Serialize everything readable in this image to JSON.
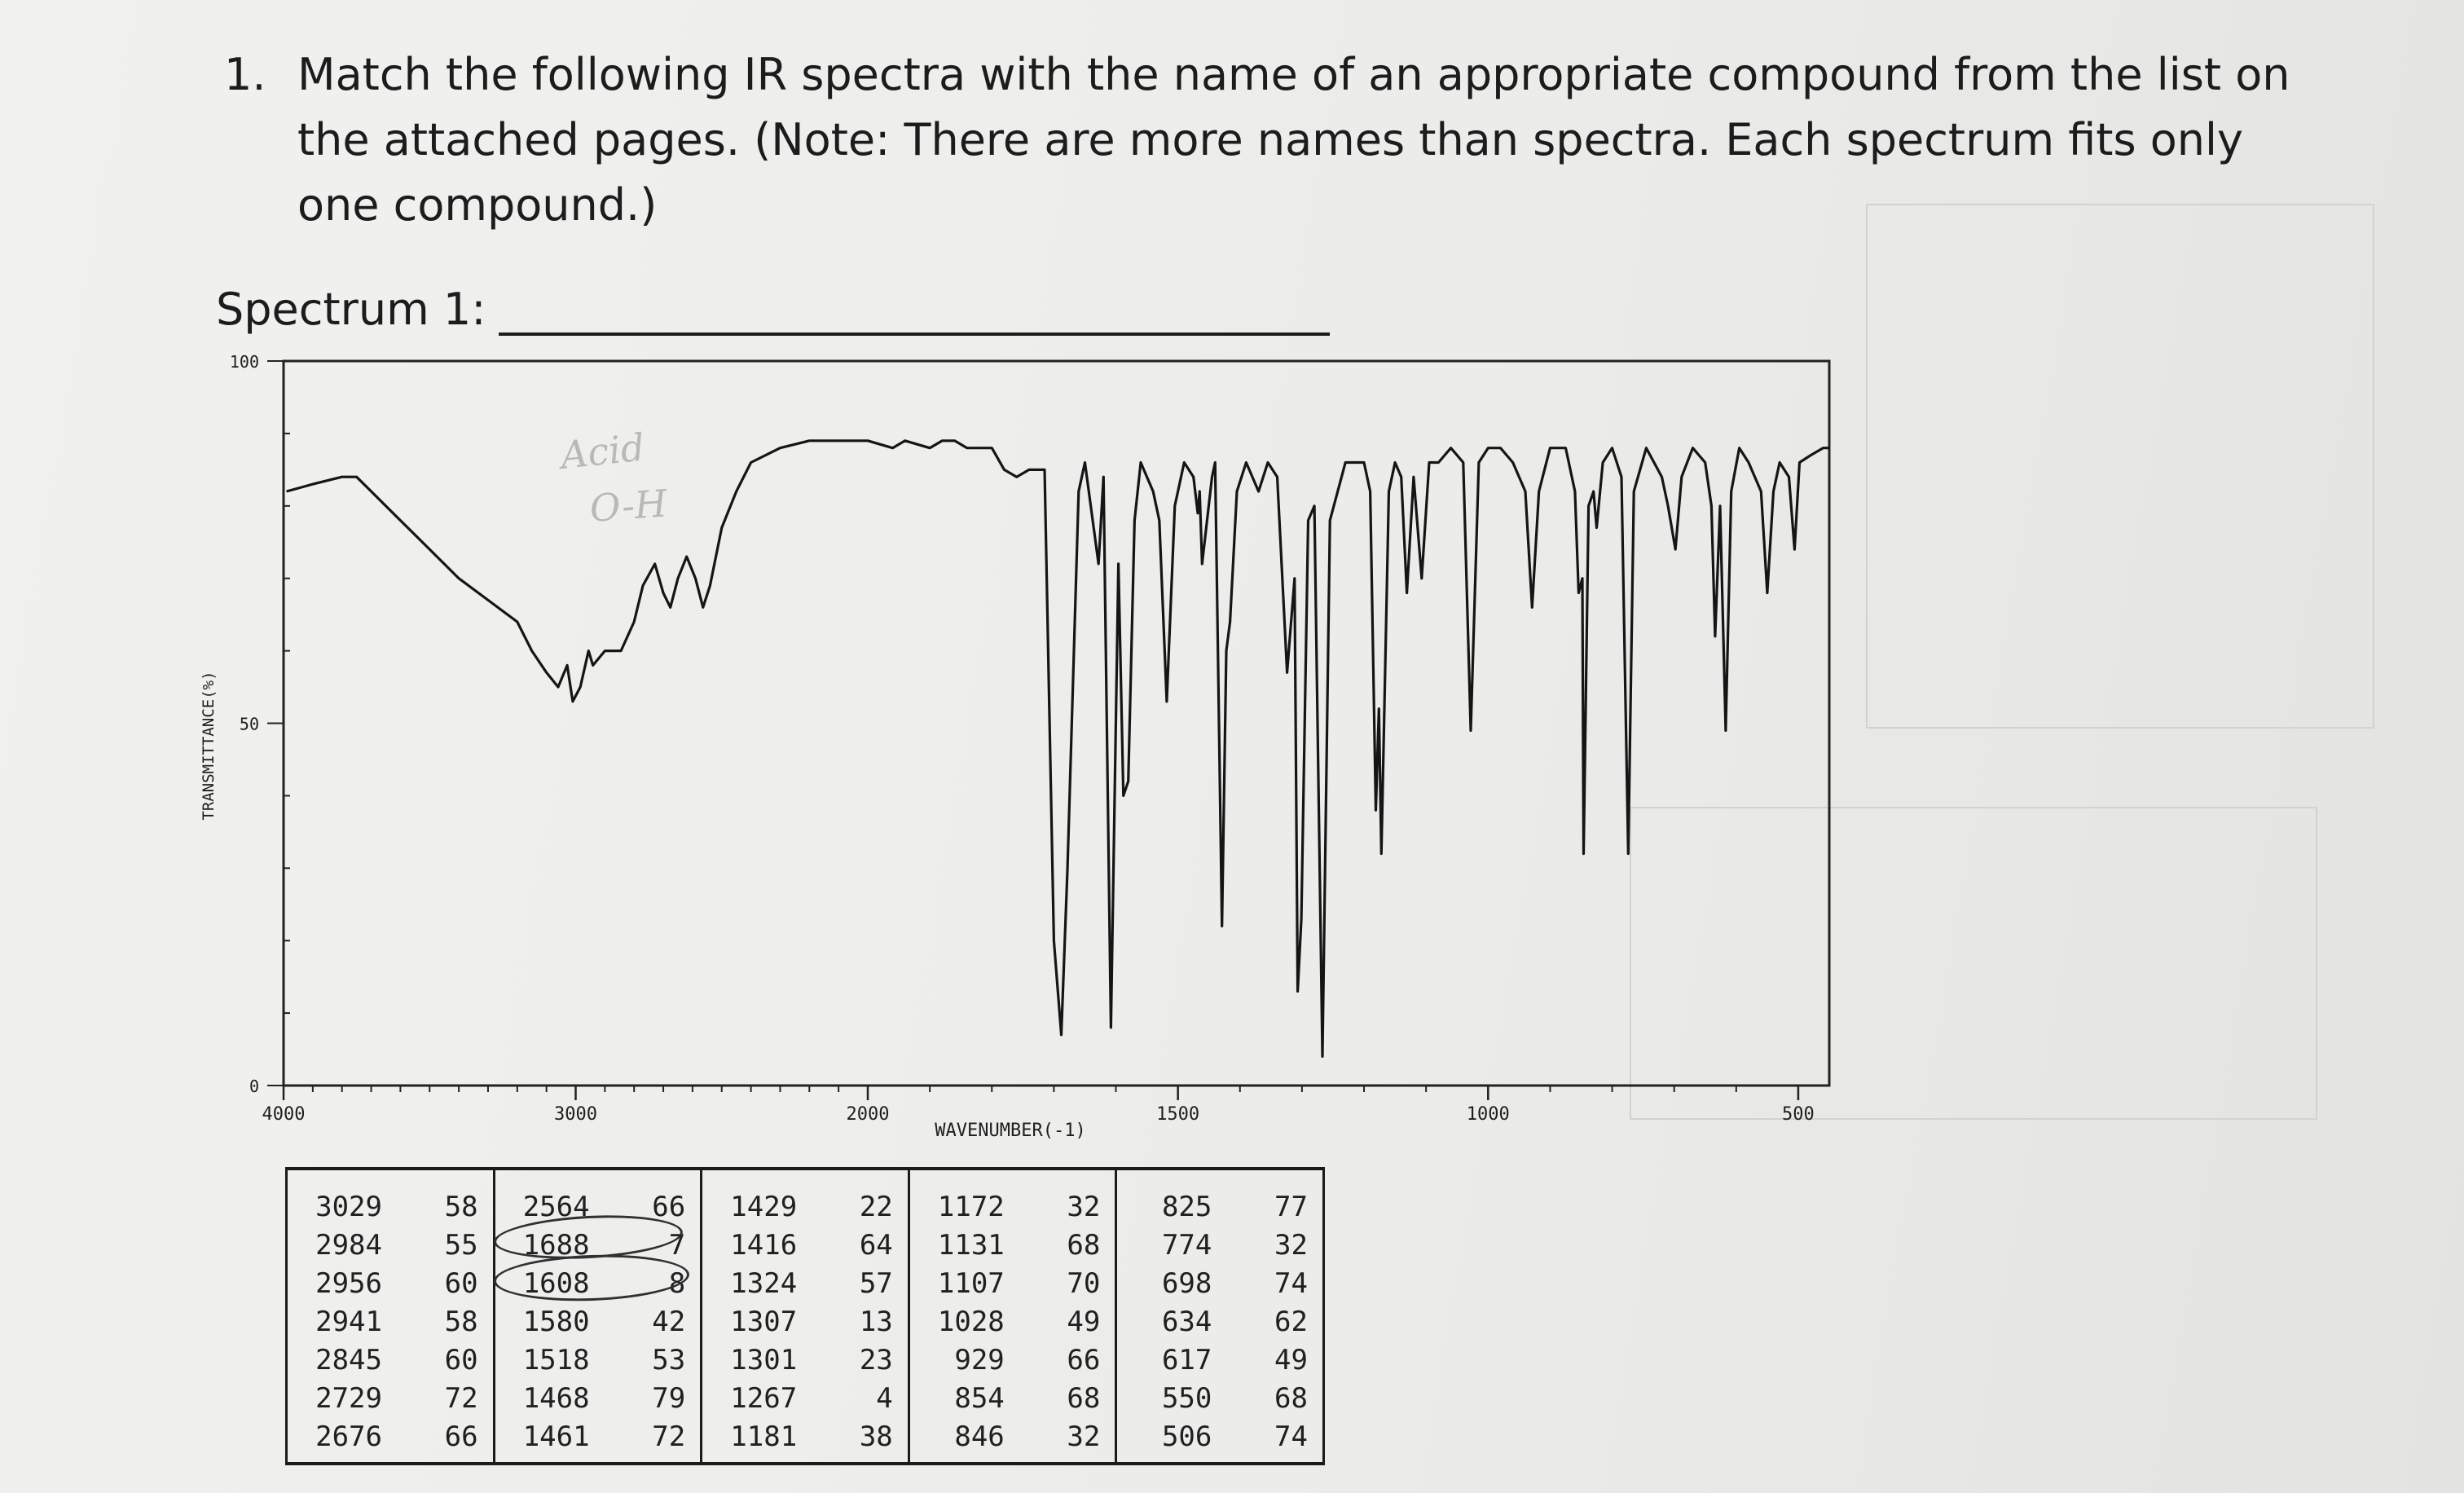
{
  "question": {
    "number": "1.",
    "text": "Match the following IR spectra with the name of an appropriate compound from the list on the attached pages. (Note: There are more names than spectra. Each spectrum fits only one compound.)"
  },
  "spectrum": {
    "label": "Spectrum 1:",
    "answer": ""
  },
  "chart_data": {
    "type": "line",
    "title": "",
    "xlabel": "WAVENUMBER(-1)",
    "ylabel": "TRANSMITTANCE(%)",
    "xlim": [
      4000,
      450
    ],
    "ylim": [
      0,
      100
    ],
    "x_ticks": [
      {
        "value": 4000,
        "label": "4000"
      },
      {
        "value": 3000,
        "label": "3000"
      },
      {
        "value": 2000,
        "label": "2000"
      },
      {
        "value": 1500,
        "label": "1500"
      },
      {
        "value": 1000,
        "label": "1000"
      },
      {
        "value": 500,
        "label": "500"
      }
    ],
    "y_ticks": [
      {
        "value": 100,
        "label": "100"
      },
      {
        "value": 50,
        "label": "50"
      },
      {
        "value": 0,
        "label": "0"
      }
    ],
    "series": [
      {
        "points": [
          [
            3990,
            82
          ],
          [
            3900,
            83
          ],
          [
            3800,
            84
          ],
          [
            3750,
            84
          ],
          [
            3700,
            82
          ],
          [
            3600,
            78
          ],
          [
            3500,
            74
          ],
          [
            3400,
            70
          ],
          [
            3300,
            67
          ],
          [
            3200,
            64
          ],
          [
            3150,
            60
          ],
          [
            3100,
            57
          ],
          [
            3060,
            55
          ],
          [
            3029,
            58
          ],
          [
            3010,
            53
          ],
          [
            2984,
            55
          ],
          [
            2956,
            60
          ],
          [
            2941,
            58
          ],
          [
            2900,
            60
          ],
          [
            2845,
            60
          ],
          [
            2800,
            64
          ],
          [
            2770,
            69
          ],
          [
            2729,
            72
          ],
          [
            2700,
            68
          ],
          [
            2676,
            66
          ],
          [
            2650,
            70
          ],
          [
            2620,
            73
          ],
          [
            2590,
            70
          ],
          [
            2564,
            66
          ],
          [
            2540,
            69
          ],
          [
            2500,
            77
          ],
          [
            2450,
            82
          ],
          [
            2400,
            86
          ],
          [
            2300,
            88
          ],
          [
            2200,
            89
          ],
          [
            2100,
            89
          ],
          [
            2000,
            89
          ],
          [
            1960,
            88
          ],
          [
            1940,
            89
          ],
          [
            1900,
            88
          ],
          [
            1880,
            89
          ],
          [
            1860,
            89
          ],
          [
            1840,
            88
          ],
          [
            1800,
            88
          ],
          [
            1780,
            85
          ],
          [
            1760,
            84
          ],
          [
            1740,
            85
          ],
          [
            1715,
            85
          ],
          [
            1700,
            20
          ],
          [
            1688,
            7
          ],
          [
            1678,
            30
          ],
          [
            1660,
            82
          ],
          [
            1650,
            86
          ],
          [
            1628,
            72
          ],
          [
            1620,
            84
          ],
          [
            1608,
            8
          ],
          [
            1596,
            72
          ],
          [
            1588,
            40
          ],
          [
            1580,
            42
          ],
          [
            1570,
            78
          ],
          [
            1560,
            86
          ],
          [
            1540,
            82
          ],
          [
            1530,
            78
          ],
          [
            1518,
            53
          ],
          [
            1505,
            80
          ],
          [
            1490,
            86
          ],
          [
            1475,
            84
          ],
          [
            1468,
            79
          ],
          [
            1465,
            82
          ],
          [
            1461,
            72
          ],
          [
            1445,
            84
          ],
          [
            1440,
            86
          ],
          [
            1429,
            22
          ],
          [
            1422,
            60
          ],
          [
            1416,
            64
          ],
          [
            1405,
            82
          ],
          [
            1390,
            86
          ],
          [
            1370,
            82
          ],
          [
            1355,
            86
          ],
          [
            1340,
            84
          ],
          [
            1324,
            57
          ],
          [
            1312,
            70
          ],
          [
            1307,
            13
          ],
          [
            1301,
            23
          ],
          [
            1290,
            78
          ],
          [
            1280,
            80
          ],
          [
            1267,
            4
          ],
          [
            1255,
            78
          ],
          [
            1230,
            86
          ],
          [
            1200,
            86
          ],
          [
            1190,
            82
          ],
          [
            1181,
            38
          ],
          [
            1176,
            52
          ],
          [
            1172,
            32
          ],
          [
            1160,
            82
          ],
          [
            1150,
            86
          ],
          [
            1140,
            84
          ],
          [
            1131,
            68
          ],
          [
            1120,
            84
          ],
          [
            1107,
            70
          ],
          [
            1095,
            86
          ],
          [
            1080,
            86
          ],
          [
            1060,
            88
          ],
          [
            1040,
            86
          ],
          [
            1028,
            49
          ],
          [
            1015,
            86
          ],
          [
            1000,
            88
          ],
          [
            980,
            88
          ],
          [
            960,
            86
          ],
          [
            940,
            82
          ],
          [
            929,
            66
          ],
          [
            918,
            82
          ],
          [
            900,
            88
          ],
          [
            875,
            88
          ],
          [
            860,
            82
          ],
          [
            854,
            68
          ],
          [
            848,
            70
          ],
          [
            846,
            32
          ],
          [
            838,
            80
          ],
          [
            830,
            82
          ],
          [
            825,
            77
          ],
          [
            815,
            86
          ],
          [
            800,
            88
          ],
          [
            785,
            84
          ],
          [
            774,
            32
          ],
          [
            765,
            82
          ],
          [
            745,
            88
          ],
          [
            720,
            84
          ],
          [
            710,
            80
          ],
          [
            698,
            74
          ],
          [
            688,
            84
          ],
          [
            670,
            88
          ],
          [
            650,
            86
          ],
          [
            640,
            80
          ],
          [
            634,
            62
          ],
          [
            626,
            80
          ],
          [
            617,
            49
          ],
          [
            608,
            82
          ],
          [
            595,
            88
          ],
          [
            580,
            86
          ],
          [
            560,
            82
          ],
          [
            550,
            68
          ],
          [
            540,
            82
          ],
          [
            530,
            86
          ],
          [
            515,
            84
          ],
          [
            506,
            74
          ],
          [
            498,
            86
          ],
          [
            480,
            87
          ],
          [
            460,
            88
          ],
          [
            450,
            88
          ]
        ]
      }
    ],
    "annotations_handwritten": [
      "Acid",
      "O-H"
    ],
    "peak_table": [
      [
        [
          3029,
          58
        ],
        [
          2984,
          55
        ],
        [
          2956,
          60
        ],
        [
          2941,
          58
        ],
        [
          2845,
          60
        ],
        [
          2729,
          72
        ],
        [
          2676,
          66
        ]
      ],
      [
        [
          2564,
          66
        ],
        [
          1688,
          7
        ],
        [
          1608,
          8
        ],
        [
          1580,
          42
        ],
        [
          1518,
          53
        ],
        [
          1468,
          79
        ],
        [
          1461,
          72
        ]
      ],
      [
        [
          1429,
          22
        ],
        [
          1416,
          64
        ],
        [
          1324,
          57
        ],
        [
          1307,
          13
        ],
        [
          1301,
          23
        ],
        [
          1267,
          4
        ],
        [
          1181,
          38
        ]
      ],
      [
        [
          1172,
          32
        ],
        [
          1131,
          68
        ],
        [
          1107,
          70
        ],
        [
          1028,
          49
        ],
        [
          929,
          66
        ],
        [
          854,
          68
        ],
        [
          846,
          32
        ]
      ],
      [
        [
          825,
          77
        ],
        [
          774,
          32
        ],
        [
          698,
          74
        ],
        [
          634,
          62
        ],
        [
          617,
          49
        ],
        [
          550,
          68
        ],
        [
          506,
          74
        ]
      ]
    ]
  }
}
